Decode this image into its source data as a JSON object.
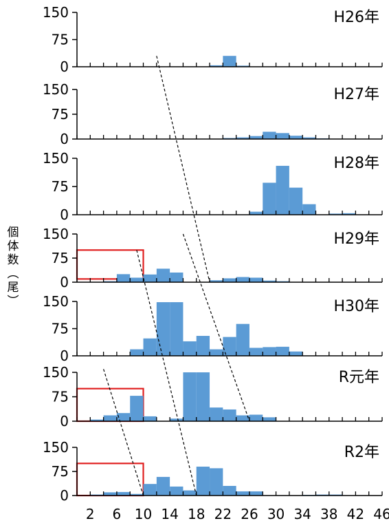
{
  "chart_data": {
    "type": "bar",
    "ylabel_chars": [
      "個",
      "体",
      "数",
      "︵",
      "尾",
      "︶"
    ],
    "x_tick_labels": [
      "2",
      "6",
      "10",
      "14",
      "18",
      "22",
      "26",
      "30",
      "34",
      "38",
      "42",
      "46"
    ],
    "x_bin_start": 0,
    "x_bin_width": 2,
    "x_range": [
      0,
      46
    ],
    "ylim": [
      0,
      150
    ],
    "y_ticks": [
      "0",
      "75",
      "150"
    ],
    "bar_color": "#5b9bd5",
    "highlight_color": "#e02020",
    "panels": [
      {
        "title": "H26年",
        "values": [
          0,
          0,
          0,
          0,
          0,
          0,
          0,
          0,
          0,
          0,
          4,
          30,
          3,
          0,
          0,
          0,
          0,
          0,
          0,
          0,
          0,
          0,
          0
        ]
      },
      {
        "title": "H27年",
        "values": [
          0,
          0,
          0,
          0,
          0,
          0,
          0,
          0,
          0,
          0,
          0,
          3,
          5,
          9,
          22,
          18,
          10,
          5,
          2,
          0,
          0,
          0,
          0
        ]
      },
      {
        "title": "H28年",
        "values": [
          0,
          0,
          0,
          0,
          0,
          0,
          0,
          0,
          0,
          0,
          0,
          0,
          0,
          8,
          85,
          130,
          72,
          28,
          0,
          3,
          4,
          0,
          0
        ]
      },
      {
        "title": "H29年",
        "values": [
          0,
          0,
          3,
          25,
          14,
          24,
          42,
          30,
          0,
          0,
          6,
          12,
          16,
          14,
          5,
          3,
          0,
          0,
          0,
          0,
          0,
          0,
          0
        ]
      },
      {
        "title": "H30年",
        "values": [
          0,
          0,
          0,
          0,
          18,
          48,
          148,
          148,
          40,
          55,
          18,
          52,
          88,
          22,
          24,
          25,
          12,
          0,
          0,
          0,
          0,
          0,
          0
        ]
      },
      {
        "title": "R元年",
        "values": [
          0,
          5,
          18,
          25,
          78,
          15,
          0,
          8,
          150,
          150,
          42,
          36,
          18,
          20,
          12,
          0,
          0,
          0,
          0,
          0,
          0,
          0,
          0
        ]
      },
      {
        "title": "R2年",
        "values": [
          0,
          3,
          10,
          11,
          5,
          36,
          58,
          28,
          16,
          90,
          85,
          30,
          13,
          13,
          0,
          0,
          0,
          2,
          3,
          3,
          0,
          0,
          0
        ]
      }
    ],
    "highlight_boxes": [
      {
        "panel": 3,
        "x_range": [
          0,
          10
        ],
        "y_range": [
          10,
          100
        ]
      },
      {
        "panel": 5,
        "x_range": [
          0,
          10
        ],
        "y_range": [
          0,
          100
        ]
      },
      {
        "panel": 6,
        "x_range": [
          0,
          10
        ],
        "y_range": [
          0,
          100
        ]
      }
    ],
    "trend_lines": [
      {
        "from": {
          "panel": 0,
          "x": 12,
          "y": 30
        },
        "to": {
          "panel": 3,
          "x": 20,
          "y": 0
        }
      },
      {
        "from": {
          "panel": 3,
          "x": 9,
          "y": 100
        },
        "to": {
          "panel": 6,
          "x": 18,
          "y": 0
        }
      },
      {
        "from": {
          "panel": 5,
          "x": 4,
          "y": 160
        },
        "to": {
          "panel": 6,
          "x": 10,
          "y": 0
        }
      },
      {
        "from": {
          "panel": 3,
          "x": 16,
          "y": 150
        },
        "to": {
          "panel": 5,
          "x": 26,
          "y": 0
        }
      }
    ]
  }
}
